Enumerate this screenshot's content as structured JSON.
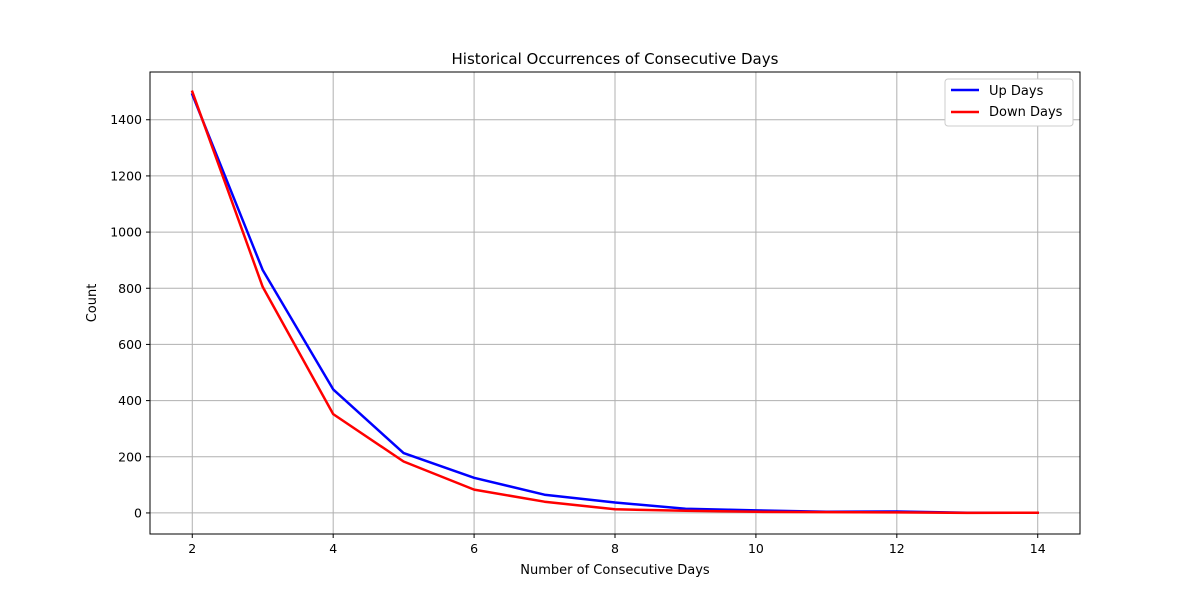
{
  "chart_data": {
    "type": "line",
    "title": "Historical Occurrences of Consecutive Days",
    "xlabel": "Number of Consecutive Days",
    "ylabel": "Count",
    "xlim": [
      1.4,
      14.6
    ],
    "ylim": [
      -75,
      1570
    ],
    "xticks": [
      2,
      4,
      6,
      8,
      10,
      12,
      14
    ],
    "yticks": [
      0,
      200,
      400,
      600,
      800,
      1000,
      1200,
      1400
    ],
    "grid": true,
    "legend_position": "top-right",
    "x": [
      2,
      3,
      4,
      5,
      6,
      7,
      8,
      9,
      10,
      11,
      12,
      13,
      14
    ],
    "series": [
      {
        "name": "Up Days",
        "color": "#0000ff",
        "values": [
          1490,
          865,
          440,
          213,
          125,
          65,
          37,
          15,
          9,
          4,
          5,
          1,
          1
        ]
      },
      {
        "name": "Down Days",
        "color": "#ff0000",
        "values": [
          1500,
          805,
          352,
          183,
          83,
          40,
          13,
          8,
          4,
          3,
          2,
          0,
          1
        ]
      }
    ]
  }
}
